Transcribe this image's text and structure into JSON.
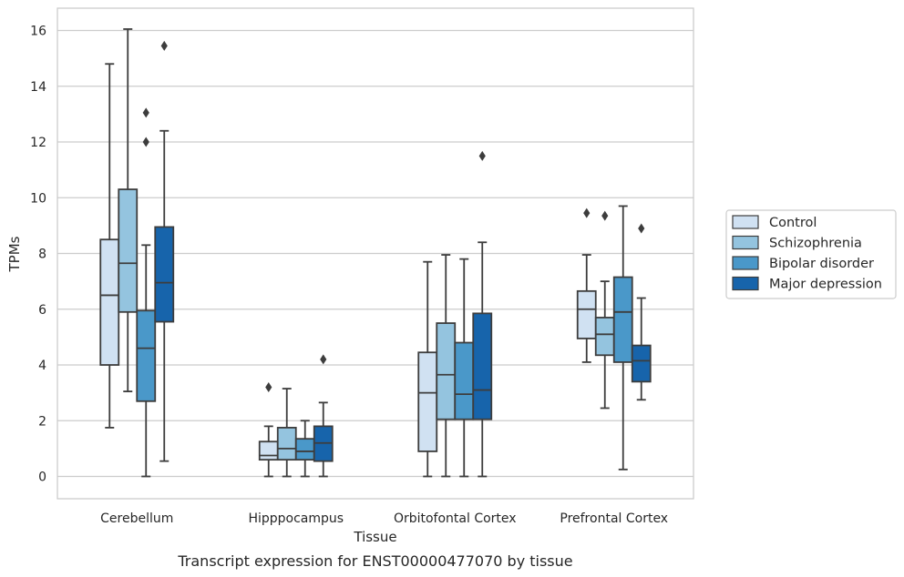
{
  "chart_data": {
    "type": "box",
    "title": "",
    "caption": "Transcript expression for ENST00000477070 by tissue",
    "xlabel": "Tissue",
    "ylabel": "TPMs",
    "ylim": [
      -0.8,
      16.8
    ],
    "yticks": [
      0,
      2,
      4,
      6,
      8,
      10,
      12,
      14,
      16
    ],
    "grid": "horizontal",
    "legend_position": "right",
    "categories": [
      "Cerebellum",
      "Hipppocampus",
      "Orbitofontal Cortex",
      "Prefrontal Cortex"
    ],
    "series": [
      {
        "name": "Control",
        "color": "#d0e1f2",
        "boxes": [
          {
            "min": 1.75,
            "q1": 4.0,
            "median": 6.5,
            "q3": 8.5,
            "max": 14.8,
            "outliers": []
          },
          {
            "min": 0.0,
            "q1": 0.6,
            "median": 0.75,
            "q3": 1.25,
            "max": 1.8,
            "outliers": [
              3.2
            ]
          },
          {
            "min": 0.0,
            "q1": 0.9,
            "median": 3.0,
            "q3": 4.45,
            "max": 7.7,
            "outliers": []
          },
          {
            "min": 4.1,
            "q1": 4.95,
            "median": 6.0,
            "q3": 6.65,
            "max": 7.95,
            "outliers": [
              9.45
            ]
          }
        ]
      },
      {
        "name": "Schizophrenia",
        "color": "#94c4df",
        "boxes": [
          {
            "min": 3.05,
            "q1": 5.9,
            "median": 7.65,
            "q3": 10.3,
            "max": 16.05,
            "outliers": []
          },
          {
            "min": 0.0,
            "q1": 0.6,
            "median": 1.0,
            "q3": 1.75,
            "max": 3.15,
            "outliers": []
          },
          {
            "min": 0.0,
            "q1": 2.05,
            "median": 3.65,
            "q3": 5.5,
            "max": 7.95,
            "outliers": []
          },
          {
            "min": 2.45,
            "q1": 4.35,
            "median": 5.1,
            "q3": 5.7,
            "max": 7.0,
            "outliers": [
              9.35
            ]
          }
        ]
      },
      {
        "name": "Bipolar disorder",
        "color": "#4a98c9",
        "boxes": [
          {
            "min": 0.0,
            "q1": 2.7,
            "median": 4.6,
            "q3": 5.95,
            "max": 8.3,
            "outliers": [
              12.0,
              13.05
            ]
          },
          {
            "min": 0.0,
            "q1": 0.6,
            "median": 0.9,
            "q3": 1.35,
            "max": 2.0,
            "outliers": []
          },
          {
            "min": 0.0,
            "q1": 2.05,
            "median": 2.95,
            "q3": 4.8,
            "max": 7.8,
            "outliers": []
          },
          {
            "min": 0.25,
            "q1": 4.1,
            "median": 5.9,
            "q3": 7.15,
            "max": 9.7,
            "outliers": []
          }
        ]
      },
      {
        "name": "Major depression",
        "color": "#1764ab",
        "boxes": [
          {
            "min": 0.55,
            "q1": 5.55,
            "median": 6.95,
            "q3": 8.95,
            "max": 12.4,
            "outliers": [
              15.45
            ]
          },
          {
            "min": 0.0,
            "q1": 0.55,
            "median": 1.2,
            "q3": 1.8,
            "max": 2.65,
            "outliers": [
              4.2
            ]
          },
          {
            "min": 0.0,
            "q1": 2.05,
            "median": 3.1,
            "q3": 5.85,
            "max": 8.4,
            "outliers": [
              11.5
            ]
          },
          {
            "min": 2.75,
            "q1": 3.4,
            "median": 4.15,
            "q3": 4.7,
            "max": 6.4,
            "outliers": [
              8.9
            ]
          }
        ]
      }
    ]
  }
}
